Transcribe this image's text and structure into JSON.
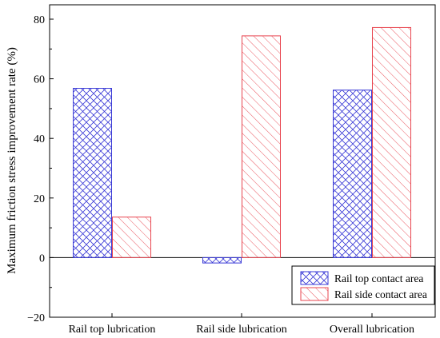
{
  "chart_data": {
    "type": "bar",
    "title": "",
    "xlabel": "",
    "ylabel": "Maximum friction stress improvement rate (%)",
    "ylim": [
      -20,
      85
    ],
    "yticks": [
      -20,
      0,
      20,
      40,
      60,
      80
    ],
    "categories": [
      "Rail top lubrication",
      "Rail side lubrication",
      "Overall lubrication"
    ],
    "series": [
      {
        "name": "Rail top contact area",
        "values": [
          56.8,
          -1.8,
          56.2
        ],
        "color": "#3a3ad6",
        "pattern": "crosshatch"
      },
      {
        "name": "Rail side contact area",
        "values": [
          13.6,
          74.4,
          77.2
        ],
        "color": "#e8454f",
        "pattern": "diagonal"
      }
    ],
    "legend_position": "bottom-right",
    "grid": false
  }
}
